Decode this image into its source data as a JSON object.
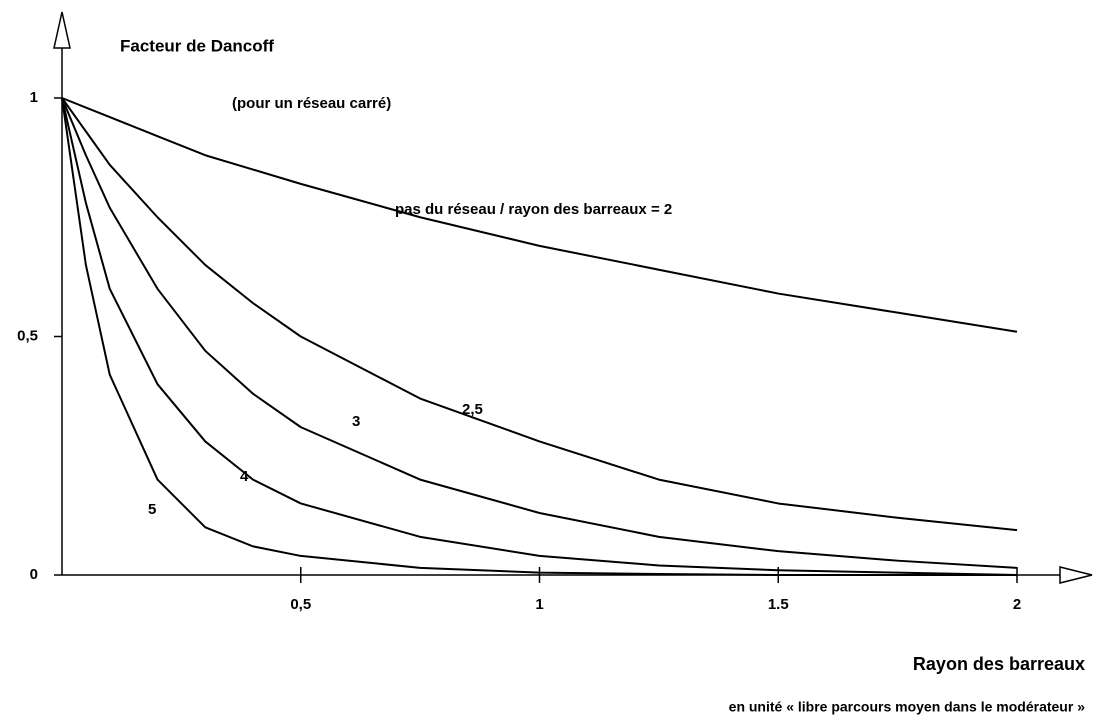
{
  "chart_data": {
    "type": "line",
    "title": "Facteur de Dancoff",
    "subtitle": "(pour un réseau carré)",
    "x_label": "Rayon des barreaux",
    "x_sublabel": "en unité « libre parcours moyen dans le modérateur »",
    "x": [
      0,
      0.05,
      0.1,
      0.2,
      0.3,
      0.4,
      0.5,
      0.75,
      1,
      1.25,
      1.5,
      1.75,
      2
    ],
    "series": [
      {
        "name": "pas du réseau / rayon des barreaux = 2",
        "color": "#000000",
        "values": [
          1,
          0.98,
          0.96,
          0.92,
          0.88,
          0.85,
          0.82,
          0.75,
          0.69,
          0.64,
          0.59,
          0.55,
          0.51
        ]
      },
      {
        "name": "2,5",
        "color": "#000000",
        "values": [
          1,
          0.93,
          0.86,
          0.75,
          0.65,
          0.57,
          0.5,
          0.37,
          0.28,
          0.2,
          0.15,
          0.12,
          0.094
        ]
      },
      {
        "name": "3",
        "color": "#000000",
        "values": [
          1,
          0.88,
          0.77,
          0.6,
          0.47,
          0.38,
          0.31,
          0.2,
          0.13,
          0.08,
          0.05,
          0.03,
          0.015
        ]
      },
      {
        "name": "4",
        "color": "#000000",
        "values": [
          1,
          0.78,
          0.6,
          0.4,
          0.28,
          0.2,
          0.15,
          0.08,
          0.04,
          0.02,
          0.01,
          0.005,
          0
        ]
      },
      {
        "name": "5",
        "color": "#000000",
        "values": [
          1,
          0.65,
          0.42,
          0.2,
          0.1,
          0.06,
          0.04,
          0.015,
          0.005,
          0.002,
          0,
          0,
          0
        ]
      }
    ],
    "xlim": [
      0,
      2
    ],
    "ylim": [
      0,
      1
    ],
    "xticks": [
      {
        "value": 0.5,
        "label": "0,5"
      },
      1,
      1.5,
      2
    ],
    "yticks": [
      0,
      {
        "value": 0.5,
        "label": "0,5"
      },
      1
    ]
  }
}
